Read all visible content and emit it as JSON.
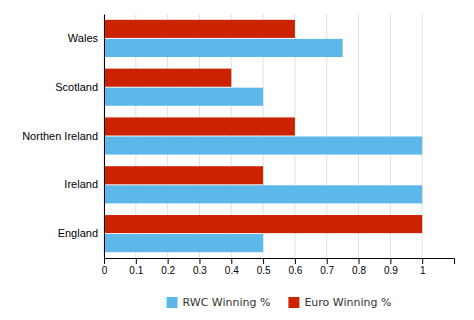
{
  "chart_data": {
    "type": "bar",
    "orientation": "horizontal",
    "categories": [
      "Wales",
      "Scotland",
      "Northen Ireland",
      "Ireland",
      "England"
    ],
    "series": [
      {
        "name": "RWC Winning %",
        "color": "#5BB8E8",
        "values": [
          0.75,
          0.5,
          1.0,
          1.0,
          0.5
        ]
      },
      {
        "name": "Euro Winning %",
        "color": "#CC2200",
        "values": [
          0.6,
          0.4,
          0.6,
          0.5,
          1.0
        ]
      }
    ],
    "xlim": [
      0,
      1.1
    ],
    "xticks": [
      0,
      0.1,
      0.2,
      0.3,
      0.4,
      0.5,
      0.6,
      0.7,
      0.8,
      0.9,
      1
    ],
    "grid": true,
    "legend": "bottom"
  }
}
